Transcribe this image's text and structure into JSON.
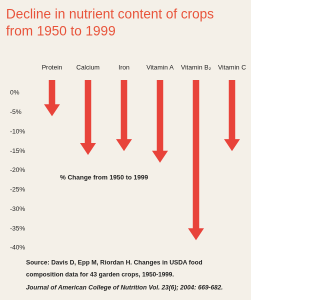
{
  "chart_data": {
    "type": "arrow-bar",
    "title": [
      "Decline in nutrient content of crops",
      "from 1950 to 1999"
    ],
    "categories": [
      "Protein",
      "Calcium",
      "Iron",
      "Vitamin A",
      "Vitamin B₂",
      "Vitamin C"
    ],
    "values": [
      -6,
      -16,
      -15,
      -18,
      -38,
      -15
    ],
    "color": "#e8433a",
    "ylim": [
      0,
      -40
    ],
    "yticks": [
      {
        "value": 0,
        "label": "0%"
      },
      {
        "value": -5,
        "label": "-5%"
      },
      {
        "value": -10,
        "label": "-10%"
      },
      {
        "value": -15,
        "label": "-15%"
      },
      {
        "value": -20,
        "label": "-20%"
      },
      {
        "value": -25,
        "label": "-25%"
      },
      {
        "value": -30,
        "label": "-30%"
      },
      {
        "value": -35,
        "label": "-35%"
      },
      {
        "value": -40,
        "label": "-40%"
      }
    ],
    "annotation": "% Change from 1950 to 1999",
    "source": [
      "Source: Davis D, Epp M, Riordan H. Changes in USDA food",
      "composition data for 43 garden crops, 1950-1999."
    ],
    "citation": "Journal of American College of Nutrition Vol. 23(6); 2004: 669-682."
  }
}
